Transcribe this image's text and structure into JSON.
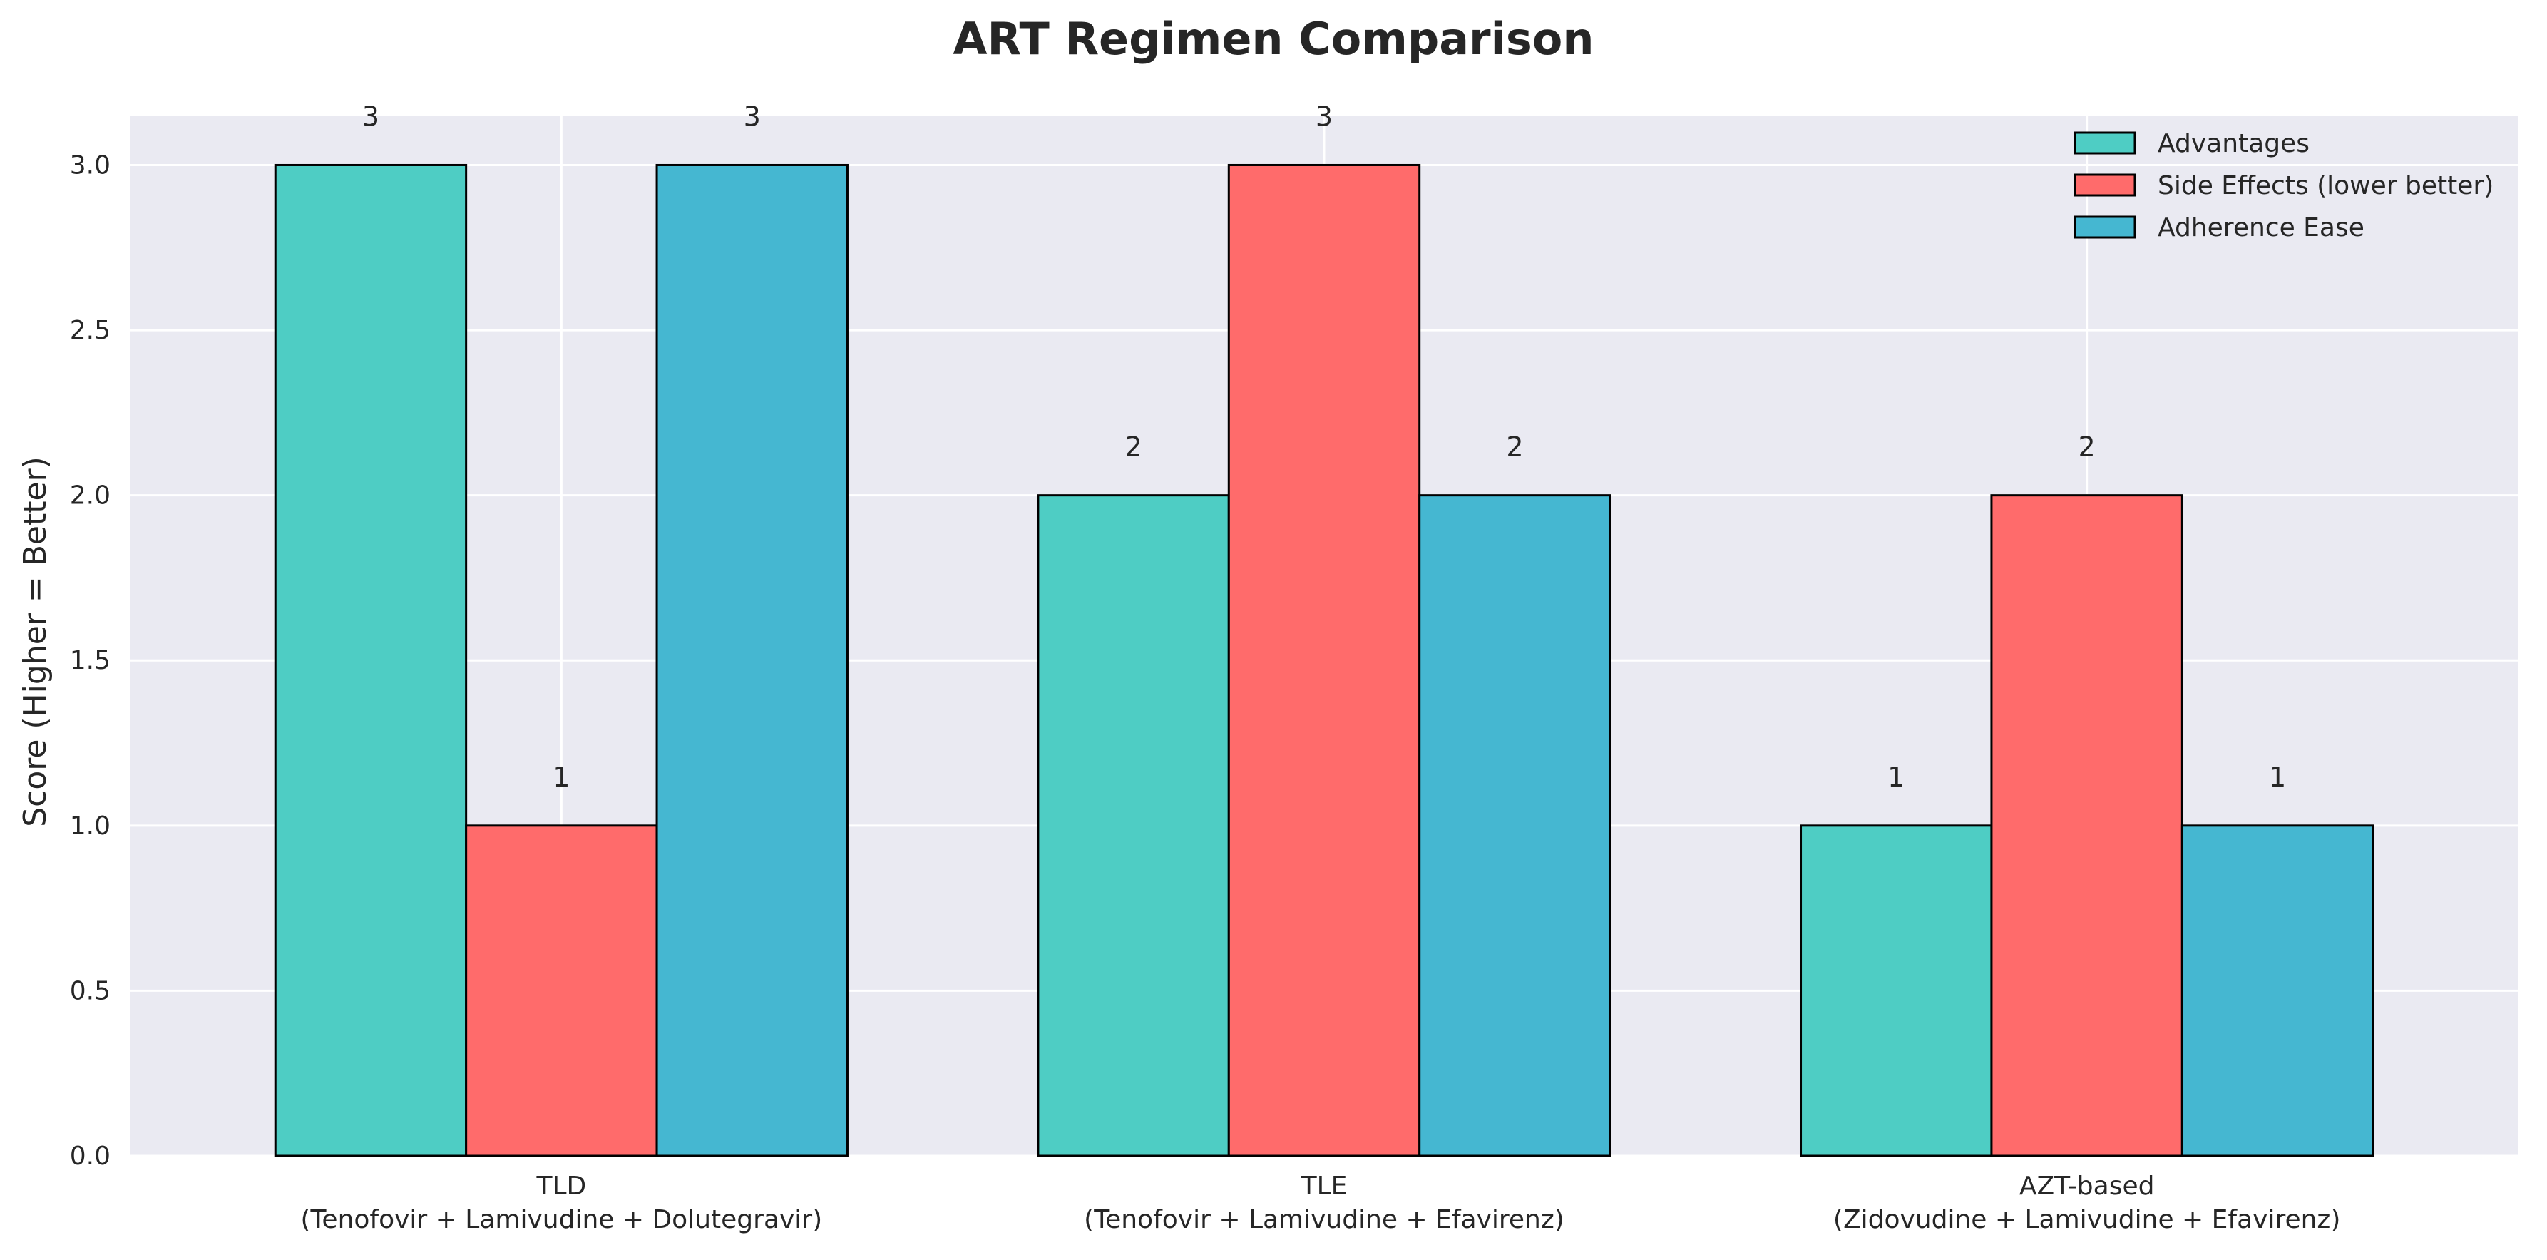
{
  "chart_data": {
    "type": "bar",
    "title": "ART Regimen Comparison",
    "xlabel": "",
    "ylabel": "Score (Higher = Better)",
    "ylim": [
      0,
      3.15
    ],
    "yticks": [
      "0.0",
      "0.5",
      "1.0",
      "1.5",
      "2.0",
      "2.5",
      "3.0"
    ],
    "grid": true,
    "legend_position": "top-right",
    "categories": [
      {
        "line1": "TLD",
        "line2": "(Tenofovir + Lamivudine + Dolutegravir)"
      },
      {
        "line1": "TLE",
        "line2": "(Tenofovir + Lamivudine + Efavirenz)"
      },
      {
        "line1": "AZT-based",
        "line2": "(Zidovudine + Lamivudine + Efavirenz)"
      }
    ],
    "series": [
      {
        "name": "Advantages",
        "values": [
          3,
          2,
          1
        ],
        "color": "#4ECDC4"
      },
      {
        "name": "Side Effects (lower better)",
        "values": [
          1,
          3,
          2
        ],
        "color": "#FF6B6B"
      },
      {
        "name": "Adherence Ease",
        "values": [
          3,
          2,
          1
        ],
        "color": "#45B7D1"
      }
    ],
    "colors": {
      "plot_background": "#EAEAF2",
      "grid": "#FFFFFF",
      "bar_edge": "#000000",
      "text": "#262626"
    }
  }
}
